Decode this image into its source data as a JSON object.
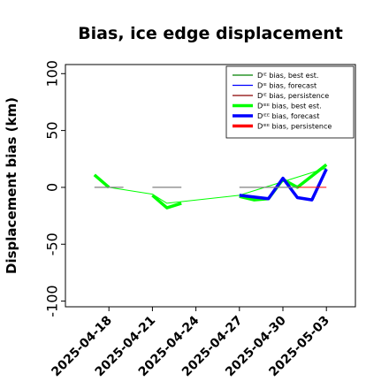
{
  "chart_data": {
    "type": "line",
    "title": "Bias, ice edge displacement",
    "ylabel": "Displacement bias (km)",
    "xlabel": "",
    "ylim": [
      -105,
      108
    ],
    "xlim": [
      "2025-04-15",
      "2025-05-05"
    ],
    "grid": false,
    "legend_placement": "top-right",
    "yticks": [
      -100,
      -50,
      0,
      50,
      100
    ],
    "xticks": [
      {
        "date": "2025-04-18",
        "color": "#000000"
      },
      {
        "date": "2025-04-21",
        "color": "#000000"
      },
      {
        "date": "2025-04-24",
        "color": "#228b22"
      },
      {
        "date": "2025-04-27",
        "color": "#000000"
      },
      {
        "date": "2025-04-30",
        "color": "#000000"
      },
      {
        "date": "2025-05-03",
        "color": "#000000"
      }
    ],
    "legend": [
      {
        "label": "Dᴵᴱ bias, best est.",
        "color": "#008000",
        "width": 1.2
      },
      {
        "label": "Dᴵᴱ bias, forecast",
        "color": "#0000ff",
        "width": 1.2
      },
      {
        "label": "Dᴵᴱ bias, persistence",
        "color": "#8b0000",
        "width": 1.2
      },
      {
        "label": "Dᴵᴱᴱ bias, best est.",
        "color": "#00ff00",
        "width": 3.5
      },
      {
        "label": "Dᴵᴱᴱ bias, forecast",
        "color": "#0000ff",
        "width": 3.5
      },
      {
        "label": "Dᴵᴱᴱ bias, persistence",
        "color": "#ff0000",
        "width": 3.5
      }
    ],
    "series": [
      {
        "name": "Dᴵᴱ bias, best est.",
        "color": "#00ff00",
        "width": 1,
        "x": [
          "2025-04-18",
          "2025-04-21",
          "2025-04-22",
          "2025-04-27",
          "2025-05-03"
        ],
        "y": [
          0,
          -6,
          -14,
          -7,
          17
        ]
      },
      {
        "name": "Dᴵᴱᴱ bias, best est.",
        "color": "#00ff00",
        "width": 3.5,
        "x": [
          "2025-04-17",
          "2025-04-18"
        ],
        "y": [
          11,
          0
        ]
      },
      {
        "name": "Dᴵᴱᴱ bias, best est.",
        "color": "#00ff00",
        "width": 3.5,
        "x": [
          "2025-04-21",
          "2025-04-22",
          "2025-04-23"
        ],
        "y": [
          -7,
          -18,
          -14
        ]
      },
      {
        "name": "Dᴵᴱᴱ bias, best est.",
        "color": "#00ff00",
        "width": 3.5,
        "x": [
          "2025-04-27",
          "2025-04-28",
          "2025-04-29",
          "2025-04-30",
          "2025-05-01",
          "2025-05-03"
        ],
        "y": [
          -8,
          -11,
          -10,
          7,
          0,
          20
        ]
      },
      {
        "name": "Dᴵᴱᴱ bias, forecast",
        "color": "#0000ff",
        "width": 3.5,
        "x": [
          "2025-04-27",
          "2025-04-29",
          "2025-04-30",
          "2025-05-01",
          "2025-05-02",
          "2025-05-03"
        ],
        "y": [
          -7,
          -10,
          8,
          -9,
          -11,
          16
        ]
      },
      {
        "name": "Dᴵᴱᴱ bias, persistence",
        "color": "#ff0000",
        "width": 1,
        "x": [
          "2025-05-01",
          "2025-05-03"
        ],
        "y": [
          0,
          0
        ]
      },
      {
        "name": "Dᴵᴱ bias, persistence",
        "color": "#808080",
        "width": 1.2,
        "x": [
          "2025-04-17",
          "2025-04-19"
        ],
        "y": [
          0,
          0
        ]
      },
      {
        "name": "Dᴵᴱ bias, persistence",
        "color": "#808080",
        "width": 1.2,
        "x": [
          "2025-04-21",
          "2025-04-23"
        ],
        "y": [
          0,
          0
        ]
      },
      {
        "name": "Dᴵᴱ bias, persistence",
        "color": "#808080",
        "width": 1.2,
        "x": [
          "2025-04-27",
          "2025-05-01"
        ],
        "y": [
          0,
          0
        ]
      }
    ]
  }
}
